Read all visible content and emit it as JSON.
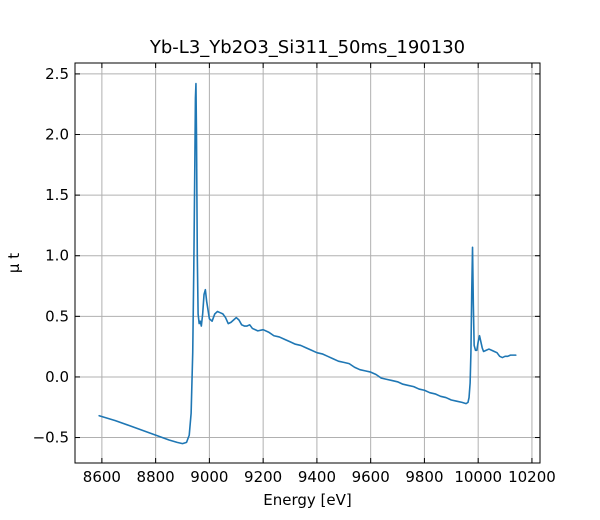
{
  "chart_data": {
    "type": "line",
    "title": "Yb-L3_Yb2O3_Si311_50ms_190130",
    "xlabel": "Energy [eV]",
    "ylabel": "μ t",
    "xlim": [
      8500,
      10230
    ],
    "ylim": [
      -0.71,
      2.59
    ],
    "xticks": [
      8600,
      8800,
      9000,
      9200,
      9400,
      9600,
      9800,
      10000,
      10200
    ],
    "yticks": [
      -0.5,
      0.0,
      0.5,
      1.0,
      1.5,
      2.0,
      2.5
    ],
    "grid": true,
    "series": [
      {
        "color": "#1f77b4",
        "x": [
          8590,
          8650,
          8700,
          8750,
          8800,
          8850,
          8880,
          8900,
          8915,
          8925,
          8932,
          8938,
          8942,
          8946,
          8948,
          8950,
          8952,
          8955,
          8958,
          8962,
          8966,
          8970,
          8975,
          8980,
          8985,
          8990,
          9000,
          9010,
          9020,
          9030,
          9040,
          9050,
          9060,
          9070,
          9080,
          9090,
          9100,
          9110,
          9120,
          9130,
          9140,
          9150,
          9160,
          9180,
          9200,
          9220,
          9240,
          9260,
          9280,
          9300,
          9320,
          9340,
          9360,
          9380,
          9400,
          9420,
          9440,
          9460,
          9480,
          9500,
          9520,
          9540,
          9560,
          9580,
          9600,
          9620,
          9640,
          9660,
          9680,
          9700,
          9720,
          9740,
          9760,
          9780,
          9800,
          9820,
          9840,
          9860,
          9880,
          9900,
          9920,
          9940,
          9955,
          9962,
          9966,
          9970,
          9973,
          9976,
          9979,
          9982,
          9985,
          9990,
          9995,
          10000,
          10005,
          10010,
          10015,
          10020,
          10030,
          10040,
          10050,
          10060,
          10070,
          10080,
          10090,
          10100,
          10110,
          10120,
          10130,
          10140
        ],
        "y": [
          -0.32,
          -0.36,
          -0.4,
          -0.44,
          -0.48,
          -0.52,
          -0.54,
          -0.55,
          -0.54,
          -0.48,
          -0.3,
          0.2,
          0.9,
          1.8,
          2.3,
          2.42,
          2.0,
          1.0,
          0.52,
          0.44,
          0.46,
          0.42,
          0.52,
          0.68,
          0.72,
          0.62,
          0.48,
          0.46,
          0.52,
          0.54,
          0.53,
          0.52,
          0.49,
          0.44,
          0.45,
          0.47,
          0.49,
          0.47,
          0.43,
          0.42,
          0.42,
          0.43,
          0.4,
          0.38,
          0.39,
          0.37,
          0.34,
          0.33,
          0.31,
          0.29,
          0.27,
          0.26,
          0.24,
          0.22,
          0.2,
          0.19,
          0.17,
          0.15,
          0.13,
          0.12,
          0.11,
          0.08,
          0.06,
          0.05,
          0.04,
          0.02,
          -0.01,
          -0.02,
          -0.03,
          -0.04,
          -0.06,
          -0.07,
          -0.08,
          -0.1,
          -0.11,
          -0.13,
          -0.14,
          -0.16,
          -0.17,
          -0.19,
          -0.2,
          -0.21,
          -0.22,
          -0.21,
          -0.17,
          -0.05,
          0.2,
          0.7,
          1.07,
          0.6,
          0.26,
          0.22,
          0.22,
          0.29,
          0.34,
          0.29,
          0.24,
          0.21,
          0.22,
          0.23,
          0.22,
          0.21,
          0.2,
          0.17,
          0.16,
          0.17,
          0.17,
          0.18,
          0.18,
          0.18
        ]
      }
    ]
  }
}
